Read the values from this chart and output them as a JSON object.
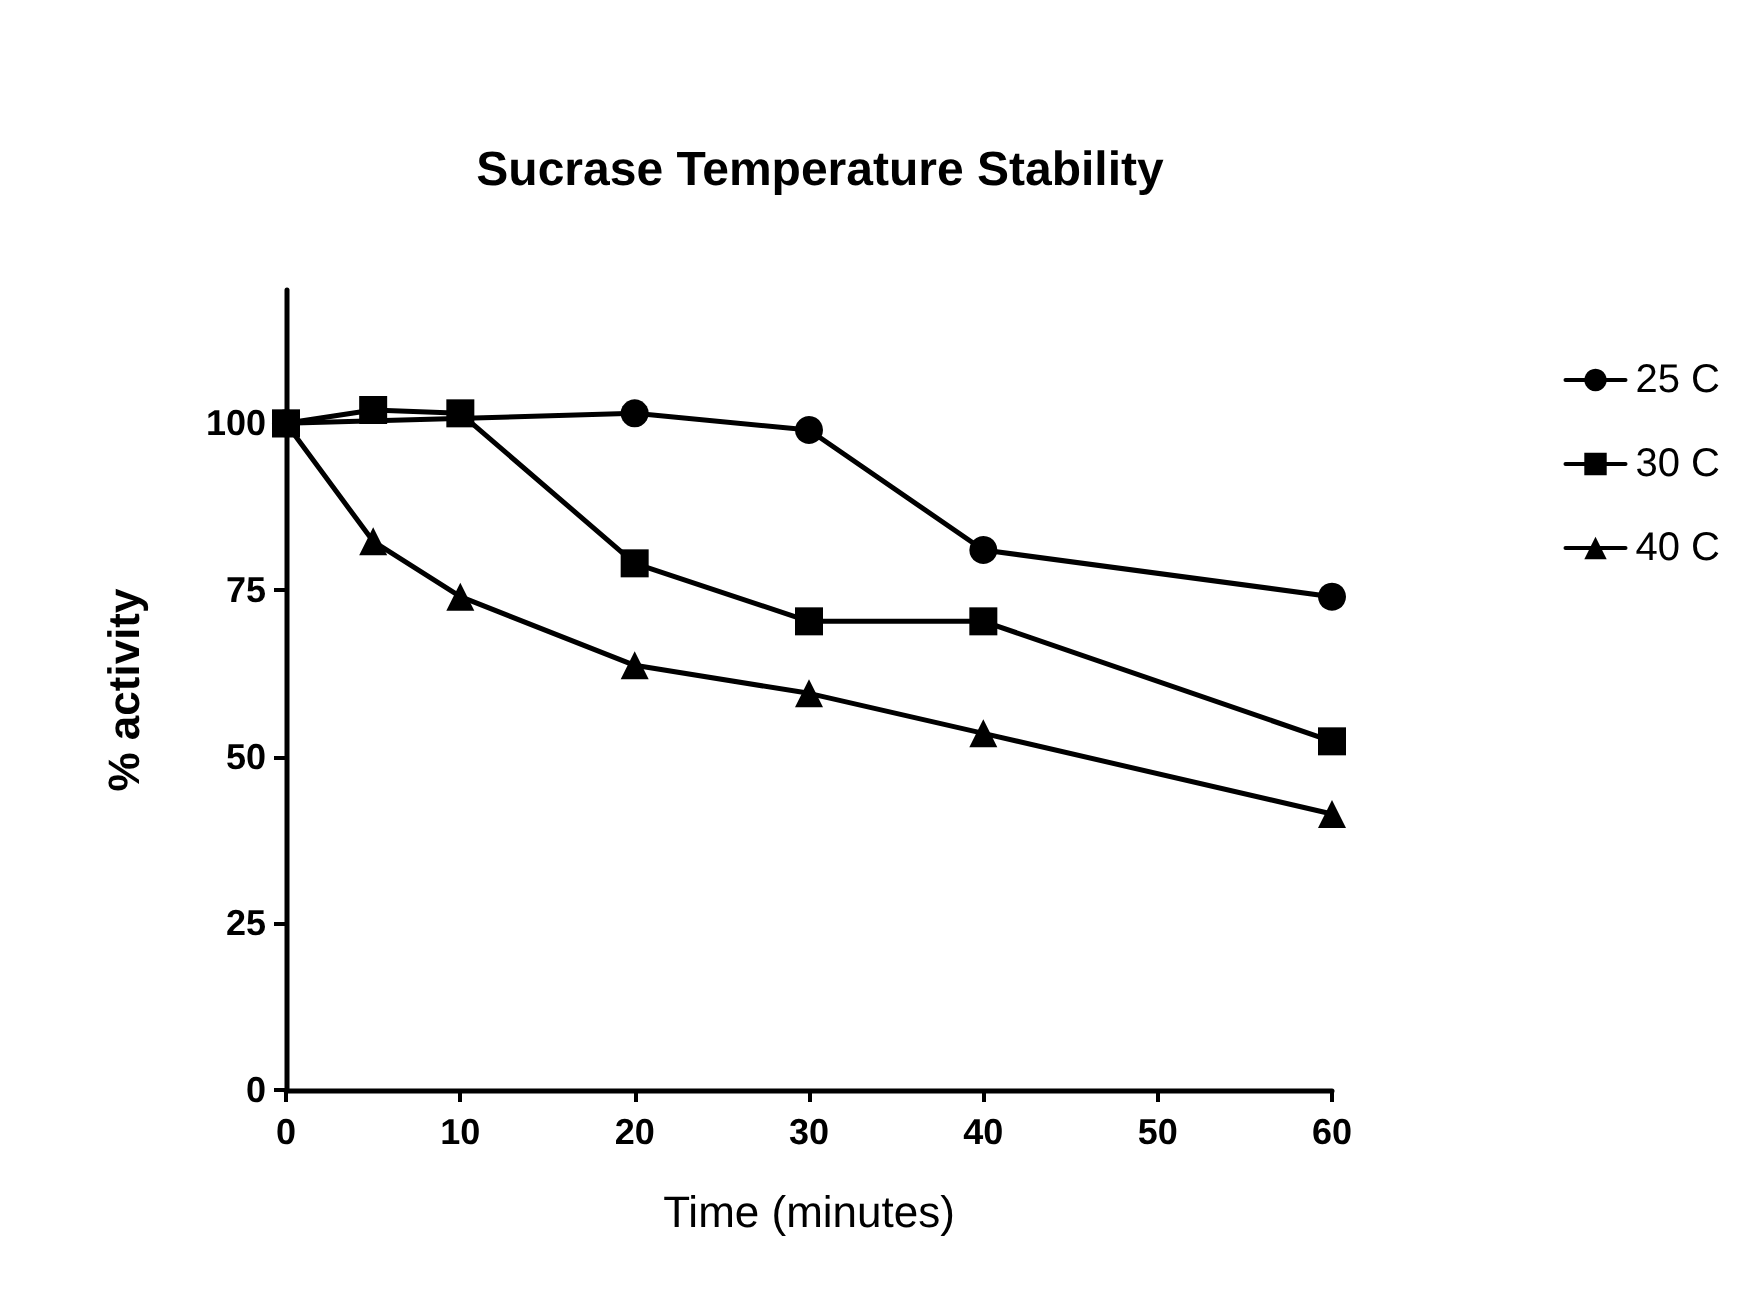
{
  "chart_data": {
    "type": "line",
    "title": "Sucrase Temperature Stability",
    "xlabel": "Time (minutes)",
    "ylabel": "% activity",
    "xlim": [
      0,
      60
    ],
    "xticks": [
      0,
      10,
      20,
      30,
      40,
      50,
      60
    ],
    "ylim": [
      0,
      120
    ],
    "yticks": [
      0,
      25,
      50,
      75,
      100
    ],
    "grid": false,
    "legend": "right",
    "line_style": "solid",
    "series": [
      {
        "name": "25 C",
        "color": "#000000",
        "marker": "circle",
        "x": [
          0,
          20,
          30,
          40,
          60
        ],
        "values": [
          100,
          101.5,
          99,
          81,
          74
        ]
      },
      {
        "name": "30 C",
        "color": "#000000",
        "marker": "square",
        "x": [
          0,
          5,
          10,
          20,
          30,
          40,
          60
        ],
        "values": [
          100,
          102,
          101.5,
          79,
          70.3,
          70.3,
          52.3
        ]
      },
      {
        "name": "40 C",
        "color": "#000000",
        "marker": "triangle",
        "x": [
          0,
          5,
          10,
          20,
          30,
          40,
          60
        ],
        "values": [
          100,
          82.3,
          74,
          63.7,
          59.5,
          53.5,
          41.4
        ]
      }
    ]
  }
}
